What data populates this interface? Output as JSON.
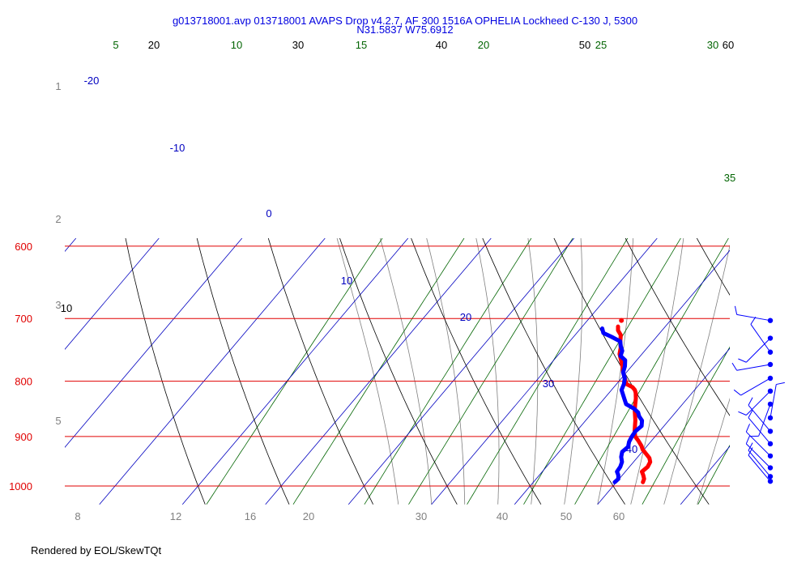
{
  "chart_data": {
    "type": "line",
    "title": "g013718001.avp 013718001 AVAPS Drop v4.2.7, AF 300 1516A OPHELIA Lockheed C-130 J, 5300",
    "subtitle": "N31.5837 W75.6912",
    "footer": "Rendered by EOL/SkewTQt",
    "colors": {
      "isobar": "#e00000",
      "isotherm": "#0000c0",
      "dry_adiabat": "#000000",
      "mixing_ratio": "#006400",
      "moist_adiabat": "#808080",
      "temperature": "#ff0000",
      "dewpoint": "#0000ff",
      "wind_barb": "#0000ff",
      "height_label": "#808080"
    },
    "isobars": [
      {
        "pressure": 600,
        "label": "600"
      },
      {
        "pressure": 700,
        "label": "700"
      },
      {
        "pressure": 800,
        "label": "800"
      },
      {
        "pressure": 900,
        "label": "900"
      },
      {
        "pressure": 1000,
        "label": "1000"
      }
    ],
    "isotherm_labels": [
      "-20",
      "-10",
      "0",
      "10",
      "20",
      "30",
      "40"
    ],
    "dry_adiabat_labels": [
      "10",
      "20",
      "30",
      "40",
      "50",
      "60"
    ],
    "mixing_ratio_labels": [
      "5",
      "10",
      "15",
      "20",
      "25",
      "30",
      "35"
    ],
    "height_labels_km": [
      "1",
      "2",
      "3",
      "5"
    ],
    "bottom_temperature_labels": [
      "8",
      "12",
      "16",
      "20",
      "30",
      "40",
      "50",
      "60"
    ],
    "series": [
      {
        "name": "Temperature",
        "values_pressure_hpa": [
          992,
          985,
          977,
          970,
          960,
          950,
          942,
          935,
          925,
          918,
          908,
          900,
          890,
          880,
          870,
          860,
          850,
          840,
          830,
          820,
          815,
          810,
          805,
          795,
          785,
          775,
          765,
          755,
          745,
          735,
          725,
          718,
          712
        ],
        "values_temp_c": [
          23.2,
          23.0,
          22.5,
          22.0,
          22.2,
          22.0,
          21.5,
          20.8,
          19.8,
          19.3,
          18.4,
          17.6,
          17.0,
          16.5,
          16.0,
          15.4,
          14.8,
          14.3,
          13.8,
          13.2,
          12.8,
          12.2,
          11.2,
          10.4,
          9.6,
          8.9,
          8.1,
          7.3,
          6.8,
          6.1,
          5.5,
          4.7,
          4.3
        ]
      },
      {
        "name": "Dewpoint",
        "values_pressure_hpa": [
          992,
          985,
          977,
          970,
          960,
          950,
          940,
          930,
          920,
          910,
          900,
          890,
          880,
          870,
          862,
          855,
          848,
          840,
          830,
          815,
          805,
          795,
          785,
          775,
          765,
          758,
          750,
          742,
          735,
          728,
          722,
          715
        ],
        "values_temp_c": [
          19.8,
          19.9,
          19.5,
          19.0,
          18.9,
          18.6,
          18.0,
          17.6,
          17.8,
          17.4,
          17.2,
          17.1,
          17.3,
          16.8,
          16.0,
          15.5,
          14.6,
          13.2,
          12.4,
          11.2,
          10.9,
          10.4,
          9.6,
          9.2,
          8.6,
          7.6,
          7.3,
          6.6,
          6.1,
          4.6,
          3.2,
          2.6
        ]
      }
    ],
    "isolated_temperature_point": {
      "pressure_hpa": 703,
      "temp_c": 4.1
    },
    "wind_barbs": [
      {
        "pressure_hpa": 703,
        "dir_deg": 280,
        "speed_kt": 10
      },
      {
        "pressure_hpa": 730,
        "dir_deg": 225,
        "speed_kt": 10
      },
      {
        "pressure_hpa": 752,
        "dir_deg": 325,
        "speed_kt": 10
      },
      {
        "pressure_hpa": 772,
        "dir_deg": 260,
        "speed_kt": 10
      },
      {
        "pressure_hpa": 795,
        "dir_deg": 240,
        "speed_kt": 10
      },
      {
        "pressure_hpa": 817,
        "dir_deg": 225,
        "speed_kt": 10
      },
      {
        "pressure_hpa": 840,
        "dir_deg": 200,
        "speed_kt": 10
      },
      {
        "pressure_hpa": 865,
        "dir_deg": 10,
        "speed_kt": 10
      },
      {
        "pressure_hpa": 890,
        "dir_deg": 320,
        "speed_kt": 10
      },
      {
        "pressure_hpa": 914,
        "dir_deg": 320,
        "speed_kt": 10
      },
      {
        "pressure_hpa": 938,
        "dir_deg": 315,
        "speed_kt": 10
      },
      {
        "pressure_hpa": 962,
        "dir_deg": 315,
        "speed_kt": 10
      },
      {
        "pressure_hpa": 980,
        "dir_deg": 320,
        "speed_kt": 10
      },
      {
        "pressure_hpa": 990,
        "dir_deg": 320,
        "speed_kt": 10
      }
    ]
  }
}
